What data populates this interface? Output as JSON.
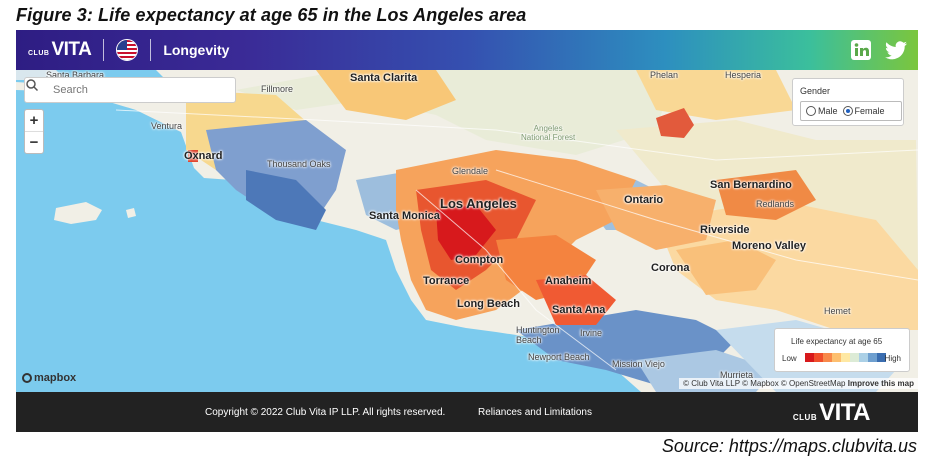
{
  "caption": "Figure 3: Life expectancy at age 65 in the Los Angeles area",
  "source": "Source: https://maps.clubvita.us",
  "header": {
    "brand_small": "CLUB",
    "brand_big": "VITA",
    "title": "Longevity",
    "icons": [
      "us-flag-icon",
      "linkedin-icon",
      "twitter-icon"
    ]
  },
  "search": {
    "placeholder": "Search"
  },
  "zoom": {
    "in_label": "+",
    "out_label": "−"
  },
  "gender": {
    "title": "Gender",
    "options": [
      "Male",
      "Female"
    ],
    "selected": "Female"
  },
  "legend": {
    "title": "Life expectancy at age 65",
    "low_label": "Low",
    "high_label": "High",
    "colors": [
      "#d7191c",
      "#f04e2b",
      "#f8894a",
      "#fdbf6f",
      "#fee8a3",
      "#dcebd6",
      "#abd0e6",
      "#6e9fcf",
      "#3a6db0"
    ]
  },
  "places": {
    "santa_barbara": "Santa Barbara",
    "santa_clarita": "Santa Clarita",
    "phelan": "Phelan",
    "hesperia": "Hesperia",
    "fillmore": "Fillmore",
    "ventura": "Ventura",
    "angeles_nf_line1": "Angeles",
    "angeles_nf_line2": "National Forest",
    "oxnard": "Oxnard",
    "thousand_oaks": "Thousand Oaks",
    "glendale": "Glendale",
    "san_bernardino": "San Bernardino",
    "redlands": "Redlands",
    "santa_monica": "Santa Monica",
    "los_angeles": "Los Angeles",
    "ontario": "Ontario",
    "riverside": "Riverside",
    "moreno_valley": "Moreno Valley",
    "compton": "Compton",
    "corona": "Corona",
    "torrance": "Torrance",
    "anaheim": "Anaheim",
    "long_beach": "Long Beach",
    "santa_ana": "Santa Ana",
    "hemet": "Hemet",
    "huntington_beach_line1": "Huntington",
    "huntington_beach_line2": "Beach",
    "irvine": "Irvine",
    "newport_beach": "Newport Beach",
    "mission_viejo": "Mission Viejo",
    "murrieta": "Murrieta"
  },
  "map": {
    "attribution": "© Club Vita LLP © Mapbox © OpenStreetMap",
    "improve_link": "Improve this map",
    "mapbox_logo": "mapbox",
    "ocean_color": "#7ccbee",
    "land_color": "#f1efe6"
  },
  "footer": {
    "copyright": "Copyright © 2022 Club Vita IP LLP. All rights reserved.",
    "reliances_link": "Reliances and Limitations",
    "brand_small": "CLUB",
    "brand_big": "VITA"
  }
}
